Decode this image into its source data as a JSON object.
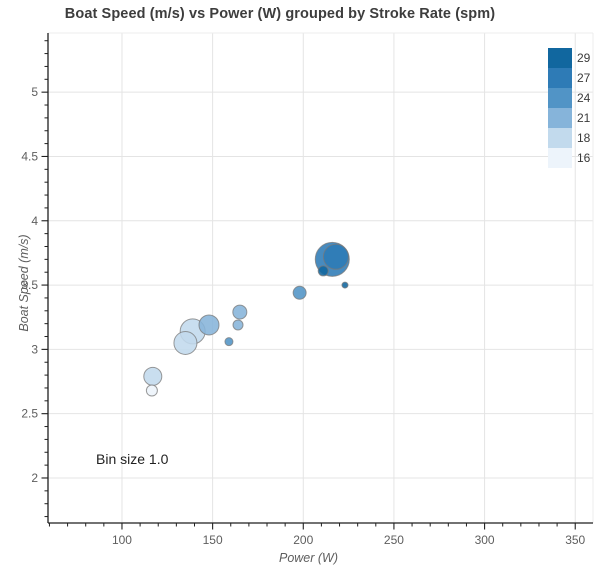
{
  "title": "Boat Speed (m/s) vs Power (W) grouped by Stroke Rate (spm)",
  "annotation": "Bin size 1.0",
  "legend": {
    "entries": [
      {
        "label": "29",
        "color": "#11679f"
      },
      {
        "label": "27",
        "color": "#2e7bb6"
      },
      {
        "label": "24",
        "color": "#5194c6"
      },
      {
        "label": "21",
        "color": "#86b4da"
      },
      {
        "label": "18",
        "color": "#c2daed"
      },
      {
        "label": "16",
        "color": "#edf4fb"
      }
    ]
  },
  "colors": {
    "grid": "#e4e4e4",
    "frame_light": "#ececec",
    "axis": "#1f1f1f",
    "tick_label": "#5e5e5e",
    "point_stroke": "#787878"
  },
  "chart_data": {
    "type": "scatter",
    "title": "Boat Speed (m/s) vs Power (W) grouped by Stroke Rate (spm)",
    "xlabel": "Power (W)",
    "ylabel": "Boat Speed (m/s)",
    "series_label": "Stroke Rate (spm)",
    "grid": "major",
    "legend_position": "top-right",
    "xlim": [
      59.2,
      359.8
    ],
    "ylim": [
      1.65,
      5.46
    ],
    "x_major_ticks": [
      100,
      150,
      200,
      250,
      300,
      350
    ],
    "y_major_ticks": [
      2,
      2.5,
      3,
      3.5,
      4,
      4.5,
      5
    ],
    "x_minor_step": 10,
    "y_minor_step": 0.1,
    "size_note": "bubble radius encodes sample count, px",
    "points": [
      {
        "power": 116.5,
        "speed": 2.68,
        "rate": 16,
        "r": 5.5
      },
      {
        "power": 117,
        "speed": 2.79,
        "rate": 18,
        "r": 9
      },
      {
        "power": 135,
        "speed": 3.05,
        "rate": 18,
        "r": 11.5
      },
      {
        "power": 139,
        "speed": 3.14,
        "rate": 18,
        "r": 12.5
      },
      {
        "power": 148,
        "speed": 3.19,
        "rate": 21,
        "r": 10
      },
      {
        "power": 159,
        "speed": 3.06,
        "rate": 24,
        "r": 4
      },
      {
        "power": 164,
        "speed": 3.19,
        "rate": 21,
        "r": 5
      },
      {
        "power": 165,
        "speed": 3.29,
        "rate": 21,
        "r": 7
      },
      {
        "power": 198,
        "speed": 3.44,
        "rate": 24,
        "r": 6.5
      },
      {
        "power": 211,
        "speed": 3.61,
        "rate": 29,
        "r": 5
      },
      {
        "power": 216,
        "speed": 3.7,
        "rate": 27,
        "r": 17
      },
      {
        "power": 218,
        "speed": 3.72,
        "rate": 27,
        "r": 12.5
      },
      {
        "power": 223,
        "speed": 3.5,
        "rate": 29,
        "r": 3
      }
    ],
    "rate_colors": {
      "29": "#11679f",
      "27": "#2e7bb6",
      "24": "#5194c6",
      "21": "#86b4da",
      "18": "#c2daed",
      "16": "#edf4fb"
    }
  }
}
